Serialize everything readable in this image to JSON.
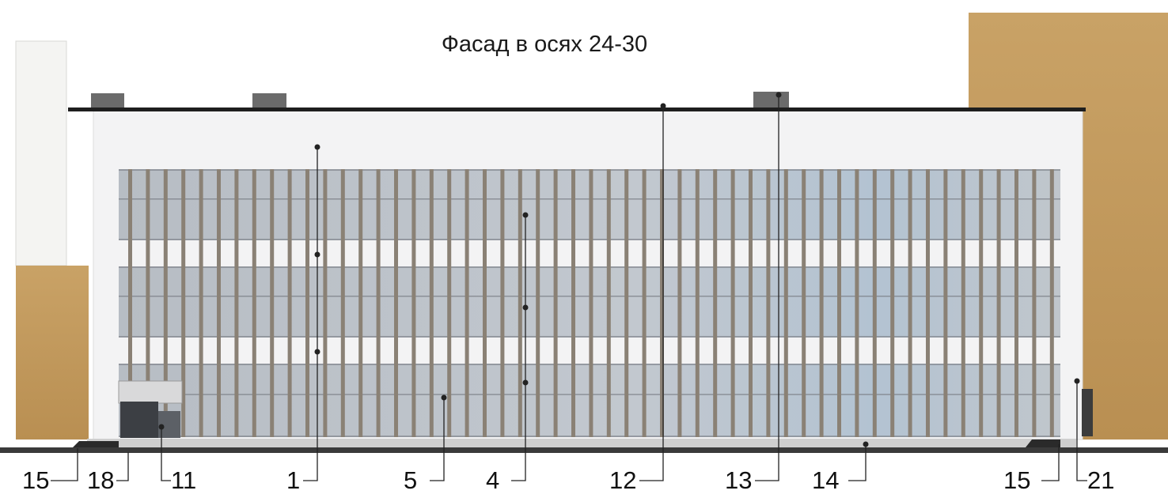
{
  "drawing": {
    "title": "Фасад в осях 24-30",
    "callouts": [
      {
        "id": "c15a",
        "label": "15"
      },
      {
        "id": "c18",
        "label": "18"
      },
      {
        "id": "c11",
        "label": "11"
      },
      {
        "id": "c1",
        "label": "1"
      },
      {
        "id": "c5",
        "label": "5"
      },
      {
        "id": "c4",
        "label": "4"
      },
      {
        "id": "c12",
        "label": "12"
      },
      {
        "id": "c13",
        "label": "13"
      },
      {
        "id": "c14",
        "label": "14"
      },
      {
        "id": "c15b",
        "label": "15"
      },
      {
        "id": "c21",
        "label": "21"
      }
    ]
  },
  "colors": {
    "facade_white": "#f3f3f4",
    "glass": "#bcc3cb",
    "fin": "#8a8175",
    "wood_panel": "#c49a5c",
    "roof_edge": "#1e1e1e",
    "ground": "#3a3a3a"
  }
}
